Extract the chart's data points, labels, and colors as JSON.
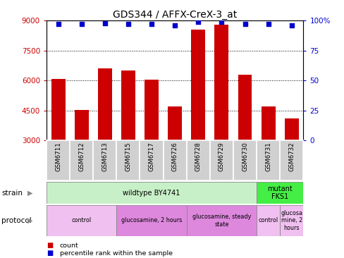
{
  "title": "GDS344 / AFFX-CreX-3_at",
  "samples": [
    "GSM6711",
    "GSM6712",
    "GSM6713",
    "GSM6715",
    "GSM6717",
    "GSM6726",
    "GSM6728",
    "GSM6729",
    "GSM6730",
    "GSM6731",
    "GSM6732"
  ],
  "counts": [
    6100,
    4550,
    6600,
    6500,
    6050,
    4700,
    8550,
    8800,
    6300,
    4700,
    4100
  ],
  "percentiles": [
    97,
    97,
    98,
    97,
    97,
    96,
    99,
    99,
    97,
    97,
    96
  ],
  "ylim_left": [
    3000,
    9000
  ],
  "ylim_right": [
    0,
    100
  ],
  "yticks_left": [
    3000,
    4500,
    6000,
    7500,
    9000
  ],
  "yticks_right": [
    0,
    25,
    50,
    75,
    100
  ],
  "bar_color": "#cc0000",
  "dot_color": "#0000cc",
  "strain_groups": [
    {
      "label": "wildtype BY4741",
      "start": 0,
      "end": 9,
      "color": "#c8f0c8"
    },
    {
      "label": "mutant\nFKS1",
      "start": 9,
      "end": 11,
      "color": "#44ee44"
    }
  ],
  "protocol_groups": [
    {
      "label": "control",
      "start": 0,
      "end": 3,
      "color": "#f0c0f0"
    },
    {
      "label": "glucosamine, 2 hours",
      "start": 3,
      "end": 6,
      "color": "#dd88dd"
    },
    {
      "label": "glucosamine, steady\nstate",
      "start": 6,
      "end": 9,
      "color": "#dd88dd"
    },
    {
      "label": "control",
      "start": 9,
      "end": 10,
      "color": "#f0c0f0"
    },
    {
      "label": "glucosa\nmine, 2\nhours",
      "start": 10,
      "end": 11,
      "color": "#f0c0f0"
    }
  ],
  "left_label_color": "#cc0000",
  "right_label_color": "#0000cc",
  "title_fontsize": 10,
  "tick_fontsize": 7.5,
  "bar_width": 0.6,
  "sample_bg": "#d0d0d0",
  "border_color": "#888888"
}
